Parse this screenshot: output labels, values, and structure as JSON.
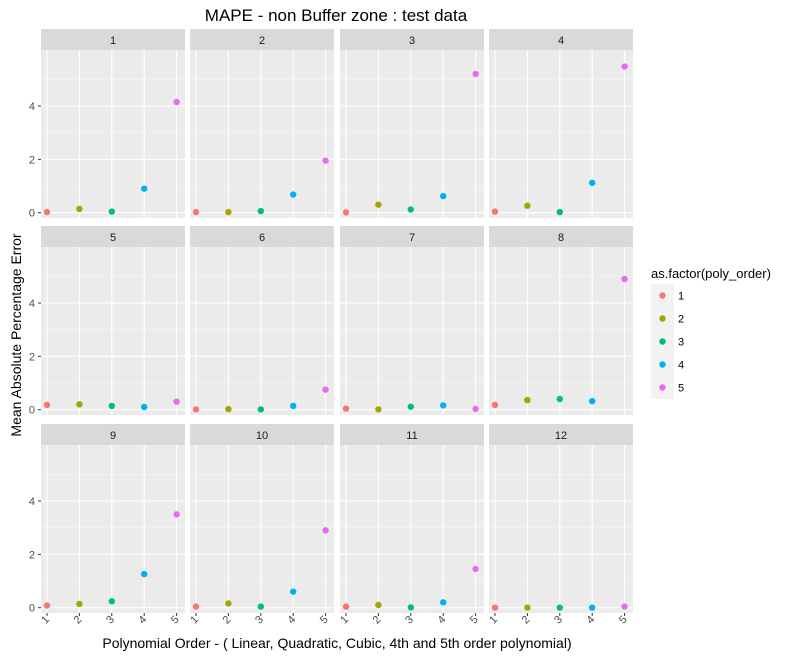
{
  "chart_data": {
    "type": "scatter",
    "title": "MAPE - non Buffer zone : test data",
    "xlabel": "Polynomial Order - ( Linear, Quadratic, Cubic, 4th and 5th order polynomial)",
    "ylabel": "Mean Absolute Percentage Error",
    "x_categories": [
      "1",
      "2",
      "3",
      "4",
      "5"
    ],
    "yticks": [
      0,
      2,
      4
    ],
    "ylim": [
      -0.2,
      6.1
    ],
    "grid": true,
    "facets_layout": "4 columns x 3 rows",
    "legend": {
      "title": "as.factor(poly_order)",
      "placement": "right",
      "entries": [
        "1",
        "2",
        "3",
        "4",
        "5"
      ]
    },
    "colors": {
      "1": "#F8766D",
      "2": "#A3A500",
      "3": "#00BF7D",
      "4": "#00B0F6",
      "5": "#E76BF3"
    },
    "facets": [
      {
        "label": "1",
        "values": [
          0.02,
          0.14,
          0.04,
          0.9,
          4.15
        ]
      },
      {
        "label": "2",
        "values": [
          0.02,
          0.02,
          0.06,
          0.68,
          1.95
        ]
      },
      {
        "label": "3",
        "values": [
          0.01,
          0.3,
          0.12,
          0.62,
          5.2
        ]
      },
      {
        "label": "4",
        "values": [
          0.04,
          0.26,
          0.02,
          1.12,
          5.48
        ]
      },
      {
        "label": "5",
        "values": [
          0.18,
          0.2,
          0.14,
          0.1,
          0.3
        ]
      },
      {
        "label": "6",
        "values": [
          0.01,
          0.02,
          0.01,
          0.14,
          0.75
        ]
      },
      {
        "label": "7",
        "values": [
          0.04,
          0.01,
          0.11,
          0.16,
          0.03
        ]
      },
      {
        "label": "8",
        "values": [
          0.18,
          0.36,
          0.4,
          0.32,
          4.9
        ]
      },
      {
        "label": "9",
        "values": [
          0.08,
          0.14,
          0.24,
          1.26,
          3.5
        ]
      },
      {
        "label": "10",
        "values": [
          0.04,
          0.16,
          0.04,
          0.6,
          2.9
        ]
      },
      {
        "label": "11",
        "values": [
          0.04,
          0.1,
          0.01,
          0.2,
          1.45
        ]
      },
      {
        "label": "12",
        "values": [
          0.0,
          0.0,
          0.0,
          0.0,
          0.04
        ]
      }
    ]
  }
}
